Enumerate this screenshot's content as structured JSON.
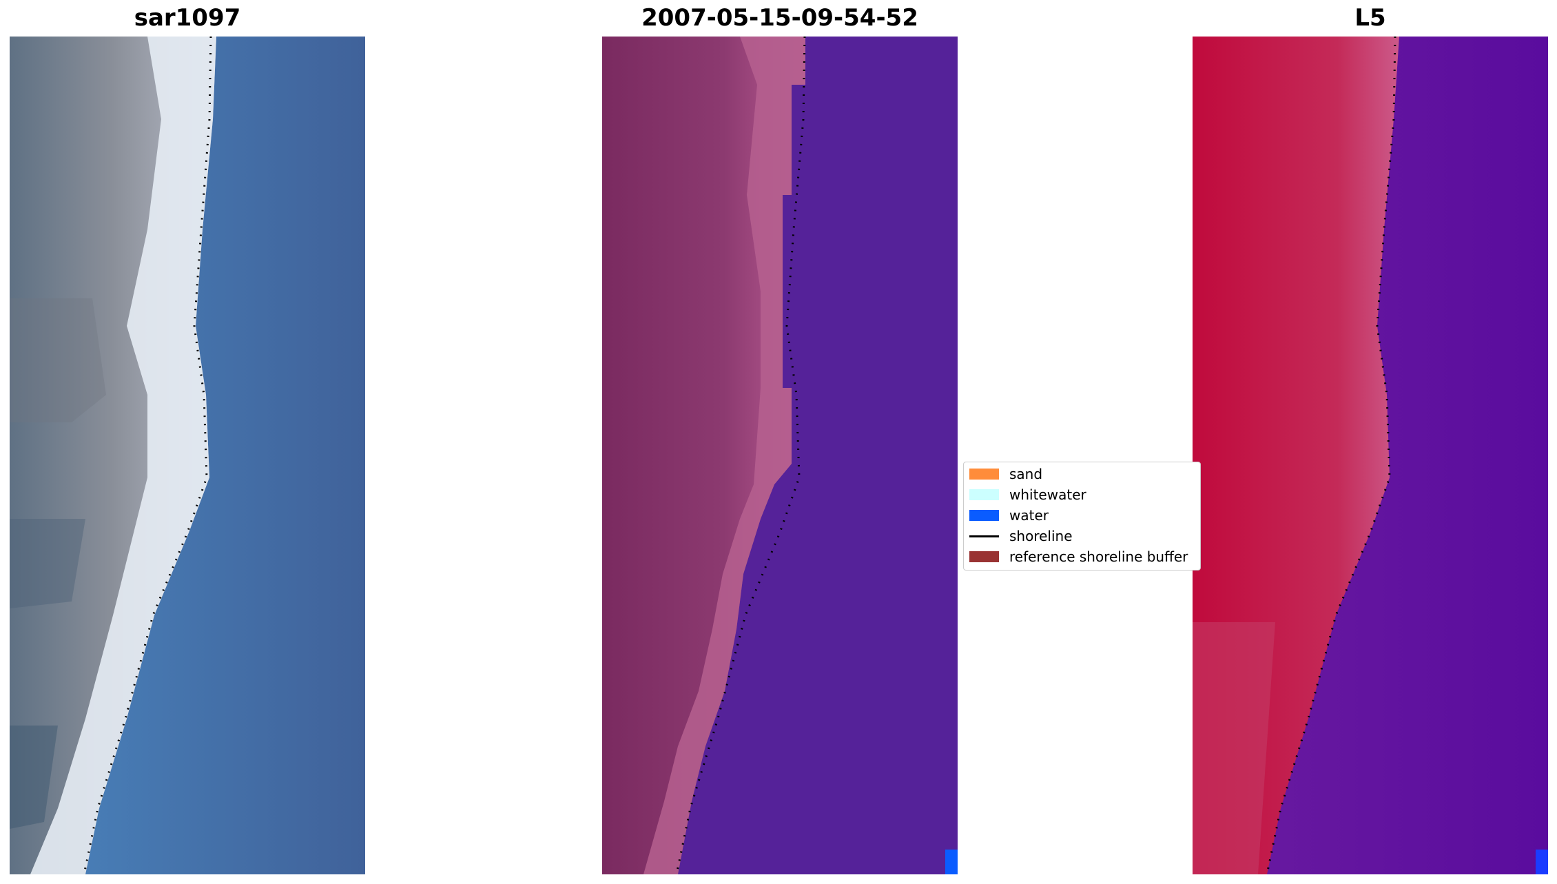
{
  "panels": [
    {
      "title": "sar1097"
    },
    {
      "title": "2007-05-15-09-54-52"
    },
    {
      "title": "L5"
    }
  ],
  "legend": {
    "items": [
      {
        "label": "sand",
        "color": "#ff8c3a"
      },
      {
        "label": "whitewater",
        "color": "#ccffff"
      },
      {
        "label": "water",
        "color": "#0a5cff"
      },
      {
        "label": "shoreline",
        "color": "#000000"
      },
      {
        "label": "reference shoreline buffer",
        "color": "#993333"
      }
    ]
  }
}
